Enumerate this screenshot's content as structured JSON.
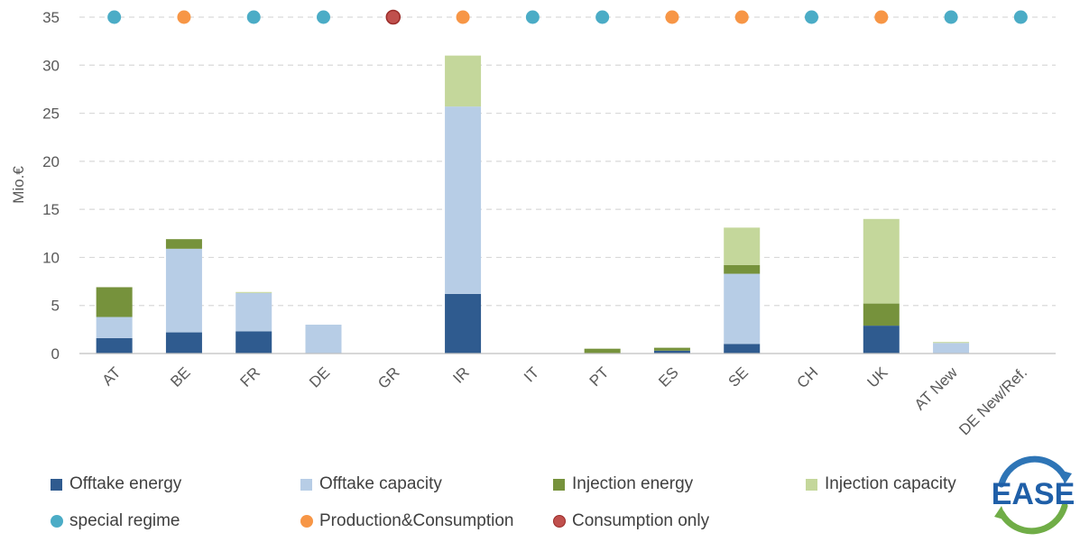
{
  "chart_data": {
    "type": "bar",
    "stacked": true,
    "ylabel": "Mio.€",
    "ylim": [
      0,
      35
    ],
    "yticks": [
      0,
      5,
      10,
      15,
      20,
      25,
      30,
      35
    ],
    "grid": true,
    "legend_position": "bottom",
    "categories": [
      "AT",
      "BE",
      "FR",
      "DE",
      "GR",
      "IR",
      "IT",
      "PT",
      "ES",
      "SE",
      "CH",
      "UK",
      "AT New",
      "DE New/Ref."
    ],
    "series": [
      {
        "name": "Offtake energy",
        "color": "#2f5b8f",
        "values": [
          1.6,
          2.2,
          2.3,
          0,
          0,
          6.2,
          0,
          0,
          0.3,
          1.0,
          0,
          2.9,
          0,
          0
        ]
      },
      {
        "name": "Offtake capacity",
        "color": "#b7cde6",
        "values": [
          2.2,
          8.7,
          4.0,
          3.0,
          0,
          19.5,
          0,
          0,
          0,
          7.3,
          0,
          0,
          1.1,
          0
        ]
      },
      {
        "name": "Injection energy",
        "color": "#76923c",
        "values": [
          3.1,
          1.0,
          0,
          0,
          0,
          0,
          0,
          0.5,
          0.3,
          0.9,
          0,
          2.3,
          0,
          0
        ]
      },
      {
        "name": "Injection capacity",
        "color": "#c4d79b",
        "values": [
          0,
          0,
          0.1,
          0,
          0,
          5.3,
          0,
          0,
          0,
          3.9,
          0,
          8.8,
          0.1,
          0
        ]
      }
    ],
    "markers": {
      "y": 35,
      "values": [
        "special regime",
        "Production&Consumption",
        "special regime",
        "special regime",
        "Consumption only",
        "Production&Consumption",
        "special regime",
        "special regime",
        "Production&Consumption",
        "Production&Consumption",
        "special regime",
        "Production&Consumption",
        "special regime",
        "special regime"
      ],
      "types": [
        {
          "name": "special regime",
          "color": "#4bacc6"
        },
        {
          "name": "Production&Consumption",
          "color": "#f79646"
        },
        {
          "name": "Consumption only",
          "color": "#c0504d"
        }
      ]
    }
  },
  "logo": {
    "text": "EASE",
    "color_text": "#1f5fa8",
    "color_arc_top": "#2e75b6",
    "color_arc_bottom": "#70ad47"
  }
}
